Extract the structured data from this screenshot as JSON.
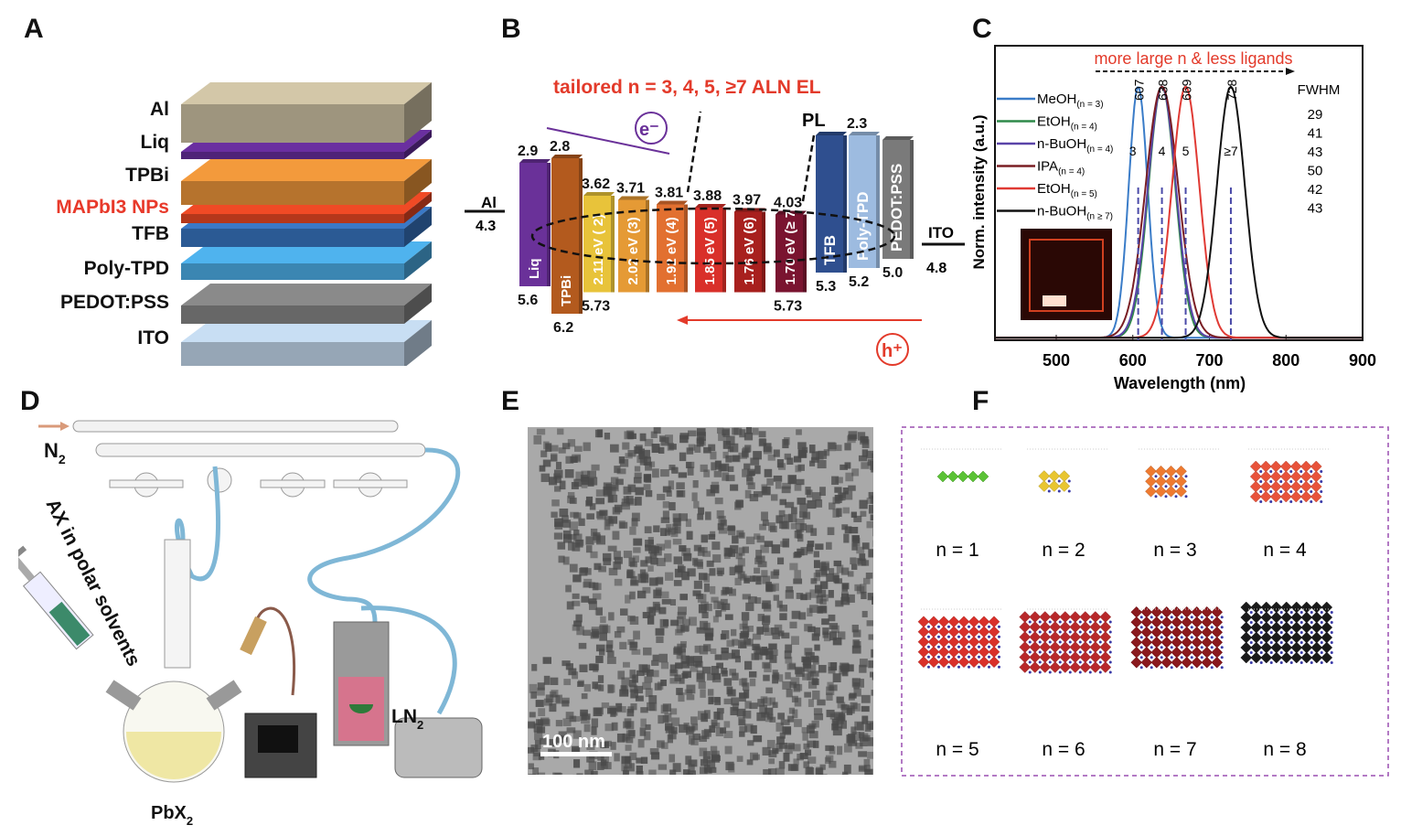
{
  "panels": {
    "a": "A",
    "b": "B",
    "c": "C",
    "d": "D",
    "e": "E",
    "f": "F"
  },
  "panel_a": {
    "layers": [
      {
        "label": "Al",
        "color": "#d3c7a8"
      },
      {
        "label": "Liq",
        "color": "#6a2fa0"
      },
      {
        "label": "TPBi",
        "color": "#f39a3c"
      },
      {
        "label": "MAPbI3 NPs",
        "color": "#f04a25",
        "highlight": "#e8392a"
      },
      {
        "label": "TFB",
        "color": "#3a78c6"
      },
      {
        "label": "Poly-TPD",
        "color": "#4fb3ee"
      },
      {
        "label": "PEDOT:PSS",
        "color": "#8a8a8a"
      },
      {
        "label": "ITO",
        "color": "#c8def3"
      }
    ]
  },
  "panel_b": {
    "title": "tailored n = 3, 4, 5, ≥7 ALN EL",
    "electron": "e⁻",
    "hole": "h⁺",
    "pl": "PL",
    "al": {
      "label": "Al",
      "value": "4.3"
    },
    "ito": {
      "label": "ITO",
      "value": "4.8"
    },
    "bars": [
      {
        "label": "Liq",
        "top": 2.9,
        "bottom": 5.6,
        "top_label": "2.9",
        "bottom_label": "5.6",
        "color": "#6a3199"
      },
      {
        "label": "TPBi",
        "top": 2.8,
        "bottom": 6.2,
        "top_label": "2.8",
        "bottom_label": "6.2",
        "color": "#b35a1e"
      },
      {
        "label": "2.11 eV ( 2)",
        "top": 3.62,
        "bottom": 5.73,
        "top_label": "3.62",
        "bottom_label": "5.73",
        "color": "#e8c33a"
      },
      {
        "label": "2.02 eV (3)",
        "top": 3.71,
        "bottom": 5.73,
        "top_label": "3.71",
        "bottom_label": "",
        "color": "#e59a35"
      },
      {
        "label": "1.92 eV (4)",
        "top": 3.81,
        "bottom": 5.73,
        "top_label": "3.81",
        "bottom_label": "",
        "color": "#e27030"
      },
      {
        "label": "1.85 eV (5)",
        "top": 3.88,
        "bottom": 5.73,
        "top_label": "3.88",
        "bottom_label": "",
        "color": "#d9302a"
      },
      {
        "label": "1.76 eV (6)",
        "top": 3.97,
        "bottom": 5.73,
        "top_label": "3.97",
        "bottom_label": "",
        "color": "#a8201e"
      },
      {
        "label": "1.70 eV (≥ 7)",
        "top": 4.03,
        "bottom": 5.73,
        "top_label": "4.03",
        "bottom_label": "5.73",
        "color": "#7a1430"
      },
      {
        "label": "TFB",
        "top": 2.3,
        "bottom": 5.3,
        "top_label": "",
        "bottom_label": "5.3",
        "color": "#2f4f8f"
      },
      {
        "label": "Poly-TPD",
        "top": 2.3,
        "bottom": 5.2,
        "top_label": "2.3",
        "bottom_label": "5.2",
        "color": "#9dbbe0"
      },
      {
        "label": "PEDOT:PSS",
        "top": 2.4,
        "bottom": 5.0,
        "top_label": "",
        "bottom_label": "5.0",
        "color": "#7a7a7a"
      }
    ]
  },
  "chart_data": {
    "type": "line",
    "xlabel": "Wavelength (nm)",
    "ylabel": "Norm. intensity (a.u.)",
    "xlim": [
      420,
      900
    ],
    "ylim": [
      0,
      1.1
    ],
    "xticks": [
      500,
      600,
      700,
      800,
      900
    ],
    "annotation": "more large n & less ligands",
    "fwhm_header": "FWHM",
    "peak_labels": [
      {
        "wavelength": 607,
        "label": "607",
        "n": "3"
      },
      {
        "wavelength": 638,
        "label": "638",
        "n": "4"
      },
      {
        "wavelength": 669,
        "label": "669",
        "n": "5"
      },
      {
        "wavelength": 728,
        "label": "728",
        "n": "≥7"
      }
    ],
    "series": [
      {
        "name": "MeOH",
        "sub": "(n = 3)",
        "peak": 607,
        "fwhm": 29,
        "fwhm_label": "29",
        "color": "#3a7cc8"
      },
      {
        "name": "EtOH",
        "sub": "(n = 4)",
        "peak": 638,
        "fwhm": 41,
        "fwhm_label": "41",
        "color": "#2f8a4a"
      },
      {
        "name": "n-BuOH",
        "sub": "(n = 4)",
        "peak": 638,
        "fwhm": 43,
        "fwhm_label": "43",
        "color": "#5a44a8"
      },
      {
        "name": "IPA",
        "sub": "(n = 4)",
        "peak": 638,
        "fwhm": 50,
        "fwhm_label": "50",
        "color": "#7a1e24"
      },
      {
        "name": "EtOH",
        "sub": "(n = 5)",
        "peak": 669,
        "fwhm": 42,
        "fwhm_label": "42",
        "color": "#e03a34"
      },
      {
        "name": "n-BuOH",
        "sub": "(n ≥ 7)",
        "peak": 728,
        "fwhm": 43,
        "fwhm_label": "43",
        "color": "#111111"
      }
    ]
  },
  "panel_d": {
    "n2": "N",
    "n2_sub": "2",
    "ax": "AX in polar solvents",
    "pbx": "PbX",
    "pbx_sub": "2",
    "ln2": "LN",
    "ln2_sub": "2"
  },
  "panel_e": {
    "scale": "100 nm"
  },
  "panel_f": {
    "structures": [
      {
        "label": "n = 1",
        "n": 1,
        "color": "#5bc236"
      },
      {
        "label": "n = 2",
        "n": 2,
        "color": "#e8c530"
      },
      {
        "label": "n = 3",
        "n": 3,
        "color": "#ee7a30"
      },
      {
        "label": "n = 4",
        "n": 4,
        "color": "#e8533a"
      },
      {
        "label": "n = 5",
        "n": 5,
        "color": "#d9302a"
      },
      {
        "label": "n = 6",
        "n": 6,
        "color": "#b8282a"
      },
      {
        "label": "n = 7",
        "n": 7,
        "color": "#8a1a1e"
      },
      {
        "label": "n = 8",
        "n": 8,
        "color": "#1a1a1a"
      }
    ]
  }
}
